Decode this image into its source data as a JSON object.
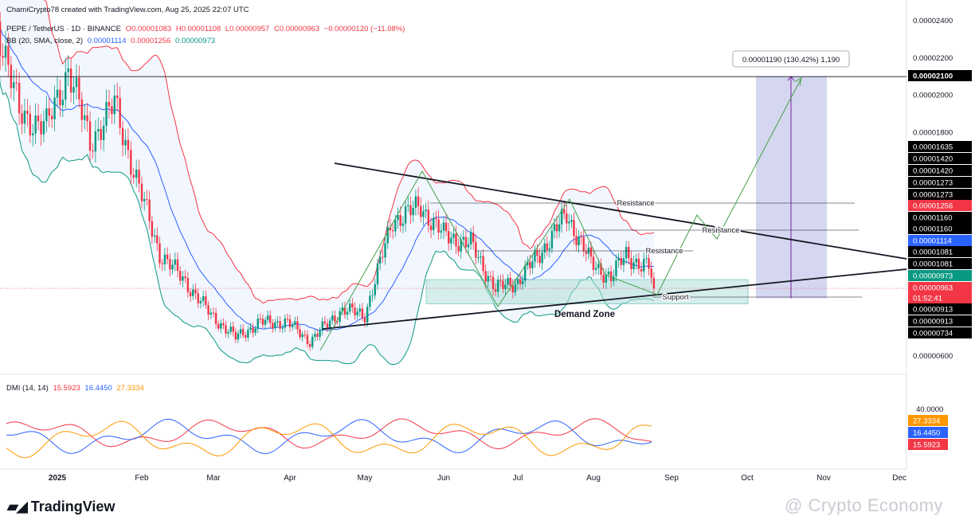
{
  "header": {
    "author": "ChamiCrypto78 created with TradingView.com, Aug 25, 2025 22:07 UTC",
    "symbol": "PEPE / TetherUS · 1D · BINANCE",
    "ohlc": {
      "open": "O0.00001083",
      "high": "H0.00001108",
      "low": "L0.00000957",
      "close": "C0.00000963",
      "change": "−0.00000120 (−11.08%)"
    },
    "bb": {
      "label": "BB (20, SMA, close, 2)",
      "basis": "0.00001114",
      "upper": "0.00001256",
      "lower": "0.00000973"
    }
  },
  "dmi": {
    "label": "DMI (14, 14)",
    "plus": "15.5923",
    "minus": "16.4450",
    "adx": "27.3334"
  },
  "annotations": {
    "measure": "0.00001190 (130.42%) 1,190",
    "resistance_1": "Resistance",
    "resistance_2": "Resistance",
    "resistance_3": "Resistance",
    "support": "Support",
    "demand_zone": "Demand Zone",
    "countdown": "01:52:41"
  },
  "brand": {
    "name": "TradingView",
    "watermark": "@ Crypto Economy"
  },
  "colors": {
    "up": "#089981",
    "down": "#f23645",
    "bb_upper": "#f23645",
    "bb_basis": "#2962ff",
    "bb_lower": "#089981",
    "di_plus": "#f23645",
    "di_minus": "#2962ff",
    "adx": "#ff9800",
    "demand_zone": "#b2dfdb",
    "target_box": "#c5cae9"
  },
  "chart_data": {
    "type": "candlestick",
    "symbol": "PEPE / TetherUS",
    "interval": "1D",
    "exchange": "BINANCE",
    "x_ticks": [
      "2025",
      "Feb",
      "Mar",
      "Apr",
      "May",
      "Jun",
      "Jul",
      "Aug",
      "Sep",
      "Oct",
      "Nov",
      "Dec"
    ],
    "y_ticks": [
      "0.00002400",
      "0.00002200",
      "0.00002000",
      "0.00001800",
      "0.00000600"
    ],
    "ylim": [
      5.3e-06,
      2.47e-05
    ],
    "price_labels": [
      {
        "value": "0.00002100",
        "kind": "target"
      },
      {
        "value": "0.00001635",
        "kind": "level"
      },
      {
        "value": "0.00001420",
        "kind": "level"
      },
      {
        "value": "0.00001420",
        "kind": "level"
      },
      {
        "value": "0.00001273",
        "kind": "level"
      },
      {
        "value": "0.00001273",
        "kind": "level"
      },
      {
        "value": "0.00001256",
        "kind": "bb_upper"
      },
      {
        "value": "0.00001160",
        "kind": "level"
      },
      {
        "value": "0.00001160",
        "kind": "level"
      },
      {
        "value": "0.00001114",
        "kind": "bb_basis"
      },
      {
        "value": "0.00001081",
        "kind": "level"
      },
      {
        "value": "0.00001081",
        "kind": "level"
      },
      {
        "value": "0.00000973",
        "kind": "bb_lower"
      },
      {
        "value": "0.00000963",
        "kind": "last"
      },
      {
        "value": "0.00000913",
        "kind": "level"
      },
      {
        "value": "0.00000913",
        "kind": "level"
      },
      {
        "value": "0.00000734",
        "kind": "level"
      }
    ],
    "close_series": [
      {
        "date": "2024-12-09",
        "close": 2.45e-05
      },
      {
        "date": "2024-12-18",
        "close": 1.9e-05
      },
      {
        "date": "2024-12-28",
        "close": 1.83e-05
      },
      {
        "date": "2025-01-05",
        "close": 2.14e-05
      },
      {
        "date": "2025-01-13",
        "close": 1.75e-05
      },
      {
        "date": "2025-01-22",
        "close": 1.95e-05
      },
      {
        "date": "2025-01-31",
        "close": 1.5e-05
      },
      {
        "date": "2025-02-08",
        "close": 1.15e-05
      },
      {
        "date": "2025-02-18",
        "close": 1e-05
      },
      {
        "date": "2025-02-28",
        "close": 8.2e-06
      },
      {
        "date": "2025-03-10",
        "close": 7e-06
      },
      {
        "date": "2025-03-20",
        "close": 7.8e-06
      },
      {
        "date": "2025-03-31",
        "close": 7.8e-06
      },
      {
        "date": "2025-04-09",
        "close": 6.8e-06
      },
      {
        "date": "2025-04-22",
        "close": 8.5e-06
      },
      {
        "date": "2025-05-01",
        "close": 8.2e-06
      },
      {
        "date": "2025-05-12",
        "close": 1.33e-05
      },
      {
        "date": "2025-05-23",
        "close": 1.4e-05
      },
      {
        "date": "2025-06-01",
        "close": 1.25e-05
      },
      {
        "date": "2025-06-12",
        "close": 1.2e-05
      },
      {
        "date": "2025-06-22",
        "close": 9.6e-06
      },
      {
        "date": "2025-07-01",
        "close": 1e-05
      },
      {
        "date": "2025-07-10",
        "close": 1.15e-05
      },
      {
        "date": "2025-07-21",
        "close": 1.36e-05
      },
      {
        "date": "2025-07-31",
        "close": 1.1e-05
      },
      {
        "date": "2025-08-08",
        "close": 1.02e-05
      },
      {
        "date": "2025-08-14",
        "close": 1.15e-05
      },
      {
        "date": "2025-08-20",
        "close": 1.08e-05
      },
      {
        "date": "2025-08-23",
        "close": 1.08e-05
      },
      {
        "date": "2025-08-25",
        "close": 9.6e-06
      }
    ],
    "dmi_latest": {
      "di_plus": 15.5923,
      "di_minus": 16.445,
      "adx": 27.3334
    },
    "dmi_y_ticks": [
      "40.0000"
    ]
  }
}
